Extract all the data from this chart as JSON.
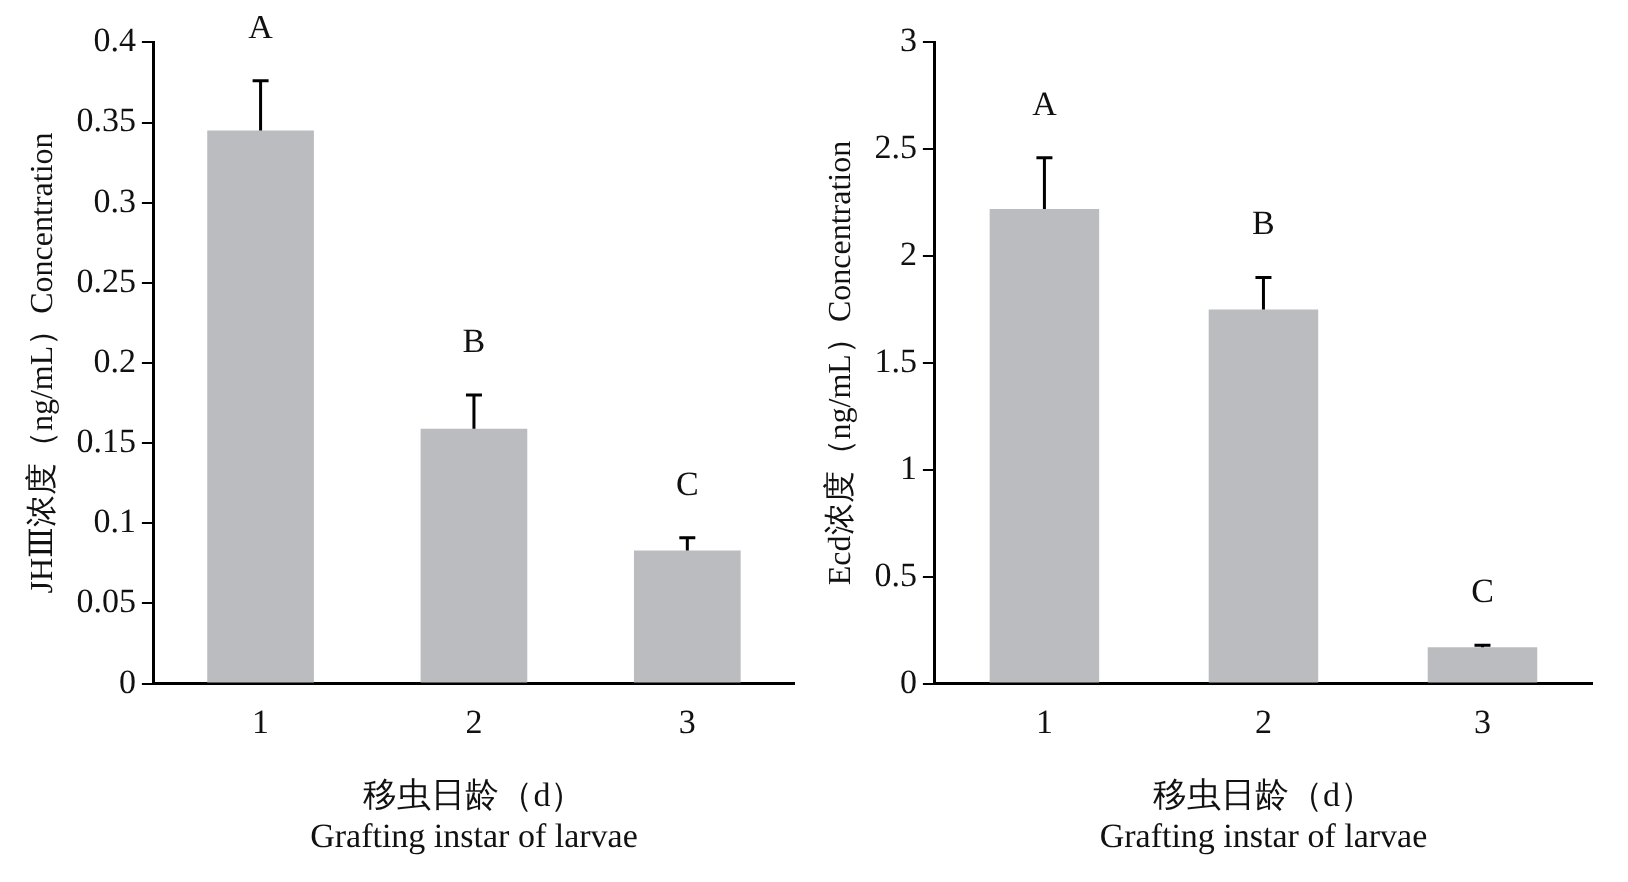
{
  "chart_data": [
    {
      "type": "bar",
      "xlabel": "移虫日龄（d）\nGrafting instar of larvae",
      "ylabel": "JHⅢ浓度（ng/mL）Concentration",
      "categories": [
        "1",
        "2",
        "3"
      ],
      "values": [
        0.345,
        0.159,
        0.083
      ],
      "errors": [
        [
          0.345,
          0.376
        ],
        [
          0.159,
          0.18
        ],
        [
          0.083,
          0.091
        ]
      ],
      "color": "#bbbcc0",
      "ylim": [
        0,
        0.4
      ],
      "yticks": [
        0,
        0.05,
        0.1,
        0.15,
        0.2,
        0.25,
        0.3,
        0.35,
        0.4
      ],
      "grid": false,
      "legend": false,
      "annotations": [
        "A",
        "B",
        "C"
      ]
    },
    {
      "type": "bar",
      "xlabel": "移虫日龄（d）\nGrafting instar of larvae",
      "ylabel": "Ecd浓度（ng/mL）Concentration",
      "categories": [
        "1",
        "2",
        "3"
      ],
      "values": [
        2.22,
        1.75,
        0.17
      ],
      "errors": [
        [
          2.22,
          2.46
        ],
        [
          1.75,
          1.9
        ],
        [
          0.17,
          0.18
        ]
      ],
      "color": "#bbbcc0",
      "ylim": [
        0,
        3
      ],
      "yticks": [
        0,
        0.5,
        1,
        1.5,
        2,
        2.5,
        3
      ],
      "grid": false,
      "legend": false,
      "annotations": [
        "A",
        "B",
        "C"
      ]
    }
  ]
}
